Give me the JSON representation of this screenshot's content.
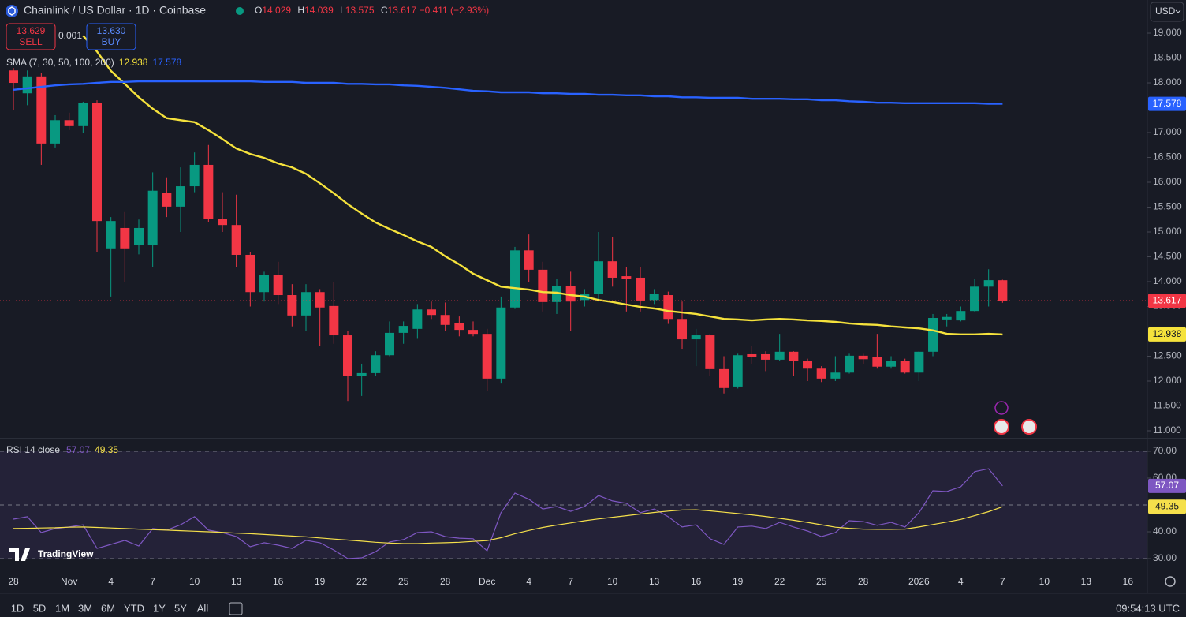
{
  "toolbar": {
    "currency": "USD",
    "timeframes": [
      "1D",
      "5D",
      "1M",
      "3M",
      "6M",
      "YTD",
      "1Y",
      "5Y",
      "All"
    ],
    "clock": "09:54:13 UTC"
  },
  "trade_panel": {
    "sell_price": "13.629",
    "sell": "SELL",
    "spread": "0.001",
    "buy_price": "13.630",
    "buy": "BUY"
  },
  "branding": "TradingView",
  "chart_data": [
    {
      "type": "candlestick",
      "title": "Chainlink / US Dollar · 1D · Coinbase",
      "ohlc_labels": [
        "O",
        "H",
        "L",
        "C"
      ],
      "change": "−0.411 (−2.93%)",
      "indicator": "SMA (7, 30, 50, 100, 200)",
      "categories": [
        "28",
        null,
        null,
        null,
        "Nov",
        null,
        null,
        "4",
        null,
        null,
        "7",
        null,
        null,
        "10",
        null,
        null,
        "13",
        null,
        null,
        "16",
        null,
        null,
        "19",
        null,
        null,
        "22",
        null,
        null,
        "25",
        null,
        null,
        "28",
        null,
        null,
        "Dec",
        null,
        null,
        "4",
        null,
        null,
        "7",
        null,
        null,
        "10",
        null,
        null,
        "13",
        null,
        null,
        "16",
        null,
        null,
        "19",
        null,
        null,
        "22",
        null,
        null,
        "25",
        null,
        null,
        "28",
        null,
        null,
        null,
        "2026",
        null,
        null,
        "4",
        null,
        null,
        "7",
        null,
        null,
        "10",
        null,
        null,
        "13",
        null,
        null,
        "16",
        null
      ],
      "open": [
        18.25,
        17.79,
        18.13,
        16.78,
        17.25,
        17.13,
        17.59,
        14.67,
        15.08,
        14.73,
        14.73,
        15.78,
        15.51,
        15.92,
        16.35,
        15.27,
        15.14,
        14.54,
        13.79,
        14.13,
        13.73,
        13.32,
        13.79,
        13.51,
        12.92,
        12.1,
        12.16,
        12.52,
        12.97,
        13.05,
        13.44,
        13.33,
        13.16,
        13.03,
        12.95,
        12.05,
        13.48,
        14.63,
        14.24,
        13.59,
        13.92,
        13.63,
        13.76,
        14.41,
        14.11,
        14.08,
        13.63,
        13.73,
        13.25,
        12.84,
        12.92,
        12.24,
        11.89,
        12.54,
        12.54,
        12.43,
        12.59,
        12.4,
        12.25,
        12.05,
        12.17,
        12.51,
        12.48,
        12.29,
        12.4,
        12.17,
        12.59,
        13.24,
        13.22,
        13.41,
        13.9,
        14.029,
        null,
        null,
        null,
        null,
        null,
        null,
        null,
        null,
        null,
        null
      ],
      "high": [
        18.3,
        18.25,
        18.2,
        17.35,
        17.4,
        17.62,
        17.65,
        15.3,
        15.4,
        15.25,
        16.2,
        16.1,
        16.3,
        16.6,
        16.75,
        15.8,
        15.75,
        14.6,
        14.2,
        14.4,
        13.95,
        13.95,
        13.85,
        14.0,
        13.0,
        12.35,
        12.6,
        13.2,
        13.2,
        13.55,
        13.6,
        13.58,
        13.3,
        13.2,
        13.05,
        13.7,
        14.7,
        14.95,
        14.4,
        14.05,
        14.2,
        13.85,
        15.0,
        14.9,
        14.3,
        14.3,
        13.85,
        13.8,
        13.6,
        13.05,
        12.95,
        12.5,
        12.55,
        12.7,
        12.6,
        12.95,
        12.6,
        12.45,
        12.3,
        12.5,
        12.55,
        12.55,
        12.95,
        12.5,
        12.45,
        12.6,
        13.35,
        13.35,
        13.5,
        14.05,
        14.25,
        14.039,
        null,
        null,
        null,
        null,
        null,
        null,
        null,
        null,
        null,
        null
      ],
      "low": [
        17.45,
        17.55,
        16.35,
        16.7,
        17.05,
        17.0,
        14.6,
        13.7,
        14.0,
        14.55,
        14.3,
        15.3,
        15.0,
        15.8,
        15.2,
        15.0,
        14.3,
        13.5,
        13.6,
        13.55,
        13.1,
        13.0,
        12.7,
        12.75,
        11.6,
        11.7,
        12.1,
        12.5,
        12.75,
        12.85,
        13.25,
        13.0,
        12.9,
        12.9,
        11.8,
        11.95,
        13.45,
        14.0,
        13.4,
        13.35,
        13.0,
        13.5,
        13.6,
        13.9,
        13.4,
        13.4,
        13.55,
        13.15,
        12.65,
        12.3,
        12.1,
        11.75,
        11.85,
        12.35,
        12.2,
        12.4,
        12.1,
        12.0,
        11.98,
        12.0,
        12.15,
        12.35,
        12.25,
        12.25,
        12.15,
        12.0,
        12.5,
        13.1,
        13.2,
        13.4,
        13.5,
        13.575,
        null,
        null,
        null,
        null,
        null,
        null,
        null,
        null,
        null,
        null
      ],
      "close": [
        18.0,
        18.13,
        16.78,
        17.25,
        17.13,
        17.59,
        15.22,
        15.22,
        14.67,
        15.08,
        15.83,
        15.51,
        15.92,
        16.35,
        15.27,
        15.14,
        14.54,
        13.79,
        14.13,
        13.73,
        13.32,
        13.79,
        13.48,
        12.92,
        12.1,
        12.16,
        12.52,
        12.97,
        13.11,
        13.44,
        13.33,
        13.13,
        13.03,
        12.95,
        12.05,
        13.48,
        14.63,
        14.24,
        13.59,
        13.92,
        13.6,
        13.76,
        14.41,
        14.08,
        14.05,
        13.62,
        13.75,
        13.25,
        12.84,
        12.92,
        12.24,
        11.86,
        12.52,
        12.49,
        12.43,
        12.59,
        12.4,
        12.25,
        12.05,
        12.17,
        12.51,
        12.44,
        12.29,
        12.4,
        12.17,
        12.59,
        13.27,
        13.29,
        13.41,
        13.9,
        14.03,
        13.617,
        null,
        null,
        null,
        null,
        null,
        null,
        null,
        null,
        null,
        null
      ],
      "up_color": "#089981",
      "down_color": "#f23645",
      "ylim": [
        10.857,
        19.667
      ],
      "yticks": [
        {
          "value": 11,
          "label": "11.000"
        },
        {
          "value": 11.5,
          "label": "11.500"
        },
        {
          "value": 12,
          "label": "12.000"
        },
        {
          "value": 12.5,
          "label": "12.500"
        },
        {
          "value": 13.5,
          "label": "13.500"
        },
        {
          "value": 14,
          "label": "14.000"
        },
        {
          "value": 14.5,
          "label": "14.500"
        },
        {
          "value": 15,
          "label": "15.000"
        },
        {
          "value": 15.5,
          "label": "15.500"
        },
        {
          "value": 16,
          "label": "16.000"
        },
        {
          "value": 16.5,
          "label": "16.500"
        },
        {
          "value": 17,
          "label": "17.000"
        },
        {
          "value": 18,
          "label": "18.000"
        },
        {
          "value": 18.5,
          "label": "18.500"
        },
        {
          "value": 19,
          "label": "19.000"
        }
      ],
      "series": [
        {
          "color": "#f5e23c",
          "values": [
            null,
            null,
            null,
            null,
            null,
            18.95,
            18.63,
            18.24,
            17.98,
            17.71,
            17.48,
            17.29,
            17.25,
            17.21,
            17.05,
            16.87,
            16.68,
            16.57,
            16.49,
            16.38,
            16.3,
            16.17,
            15.98,
            15.78,
            15.56,
            15.37,
            15.19,
            15.06,
            14.94,
            14.81,
            14.7,
            14.51,
            14.35,
            14.16,
            14.03,
            13.9,
            13.87,
            13.84,
            13.79,
            13.78,
            13.73,
            13.7,
            13.63,
            13.59,
            13.54,
            13.49,
            13.46,
            13.41,
            13.38,
            13.35,
            13.3,
            13.25,
            13.24,
            13.22,
            13.24,
            13.25,
            13.24,
            13.22,
            13.21,
            13.19,
            13.16,
            13.14,
            13.13,
            13.1,
            13.08,
            13.06,
            13.02,
            12.95,
            12.94,
            12.94,
            12.95,
            12.938,
            null,
            null,
            null,
            null,
            null,
            null,
            null,
            null,
            null,
            null
          ]
        },
        {
          "color": "#2962ff",
          "values": [
            17.86,
            17.89,
            17.92,
            17.95,
            17.97,
            17.98,
            18.0,
            18.02,
            18.02,
            18.03,
            18.03,
            18.03,
            18.03,
            18.03,
            18.03,
            18.03,
            18.03,
            18.03,
            18.02,
            18.02,
            18.02,
            18.0,
            18.0,
            18.0,
            17.98,
            17.98,
            17.97,
            17.97,
            17.95,
            17.94,
            17.92,
            17.9,
            17.87,
            17.84,
            17.83,
            17.81,
            17.81,
            17.81,
            17.79,
            17.79,
            17.78,
            17.78,
            17.76,
            17.76,
            17.75,
            17.75,
            17.73,
            17.73,
            17.71,
            17.71,
            17.7,
            17.7,
            17.7,
            17.68,
            17.68,
            17.68,
            17.67,
            17.67,
            17.65,
            17.65,
            17.63,
            17.62,
            17.6,
            17.6,
            17.59,
            17.59,
            17.59,
            17.59,
            17.59,
            17.59,
            17.58,
            17.578,
            null,
            null,
            null,
            null,
            null,
            null,
            null,
            null,
            null,
            null
          ]
        }
      ]
    },
    {
      "type": "line",
      "title": "RSI 14 close",
      "ylim": [
        25,
        74.4
      ],
      "yticks": [
        {
          "value": 30,
          "label": "30.00"
        },
        {
          "value": 40,
          "label": "40.00"
        },
        {
          "value": 60,
          "label": "60.00"
        },
        {
          "value": 70,
          "label": "70.00"
        }
      ],
      "levels": [
        70,
        50,
        30
      ],
      "band_color": "#7e57c2",
      "series": [
        {
          "color": "#7e57c2",
          "values": [
            44.7,
            45.6,
            39.7,
            41.2,
            41.8,
            42.6,
            33.8,
            35.3,
            36.8,
            34.7,
            41.2,
            40.6,
            42.6,
            45.6,
            40.6,
            39.7,
            38.2,
            34.4,
            35.9,
            35.0,
            33.8,
            36.8,
            35.9,
            33.2,
            30.0,
            30.3,
            32.6,
            36.2,
            37.1,
            39.7,
            40.0,
            38.2,
            37.6,
            37.4,
            32.9,
            47.1,
            54.4,
            52.1,
            48.5,
            49.4,
            47.6,
            49.4,
            53.5,
            51.5,
            50.6,
            47.1,
            48.5,
            45.6,
            41.8,
            42.6,
            37.4,
            35.3,
            41.8,
            42.1,
            41.2,
            43.5,
            41.8,
            40.3,
            38.2,
            39.7,
            44.1,
            43.8,
            42.4,
            43.5,
            41.8,
            47.1,
            55.3,
            55.0,
            56.8,
            62.4,
            63.5,
            57.07,
            null,
            null,
            null,
            null,
            null,
            null,
            null,
            null,
            null,
            null
          ]
        },
        {
          "color": "#f5e04b",
          "values": [
            41.2,
            41.3,
            41.4,
            41.5,
            41.7,
            41.8,
            41.6,
            41.4,
            41.2,
            41.0,
            40.8,
            40.6,
            40.4,
            40.2,
            40.0,
            39.8,
            39.5,
            39.3,
            39.0,
            38.7,
            38.4,
            38.1,
            37.7,
            37.3,
            36.9,
            36.5,
            36.1,
            35.8,
            35.6,
            35.6,
            35.8,
            35.9,
            36.1,
            36.4,
            36.7,
            37.8,
            39.3,
            40.5,
            41.6,
            42.5,
            43.3,
            44.1,
            44.8,
            45.4,
            46.0,
            46.6,
            47.2,
            47.7,
            48.1,
            48.2,
            47.8,
            47.3,
            46.8,
            46.3,
            45.7,
            45.0,
            44.3,
            43.5,
            42.6,
            41.7,
            41.3,
            41.0,
            40.9,
            40.9,
            41.0,
            41.8,
            42.7,
            43.6,
            44.6,
            46.0,
            47.5,
            49.35,
            null,
            null,
            null,
            null,
            null,
            null,
            null,
            null,
            null,
            null
          ]
        }
      ]
    }
  ]
}
